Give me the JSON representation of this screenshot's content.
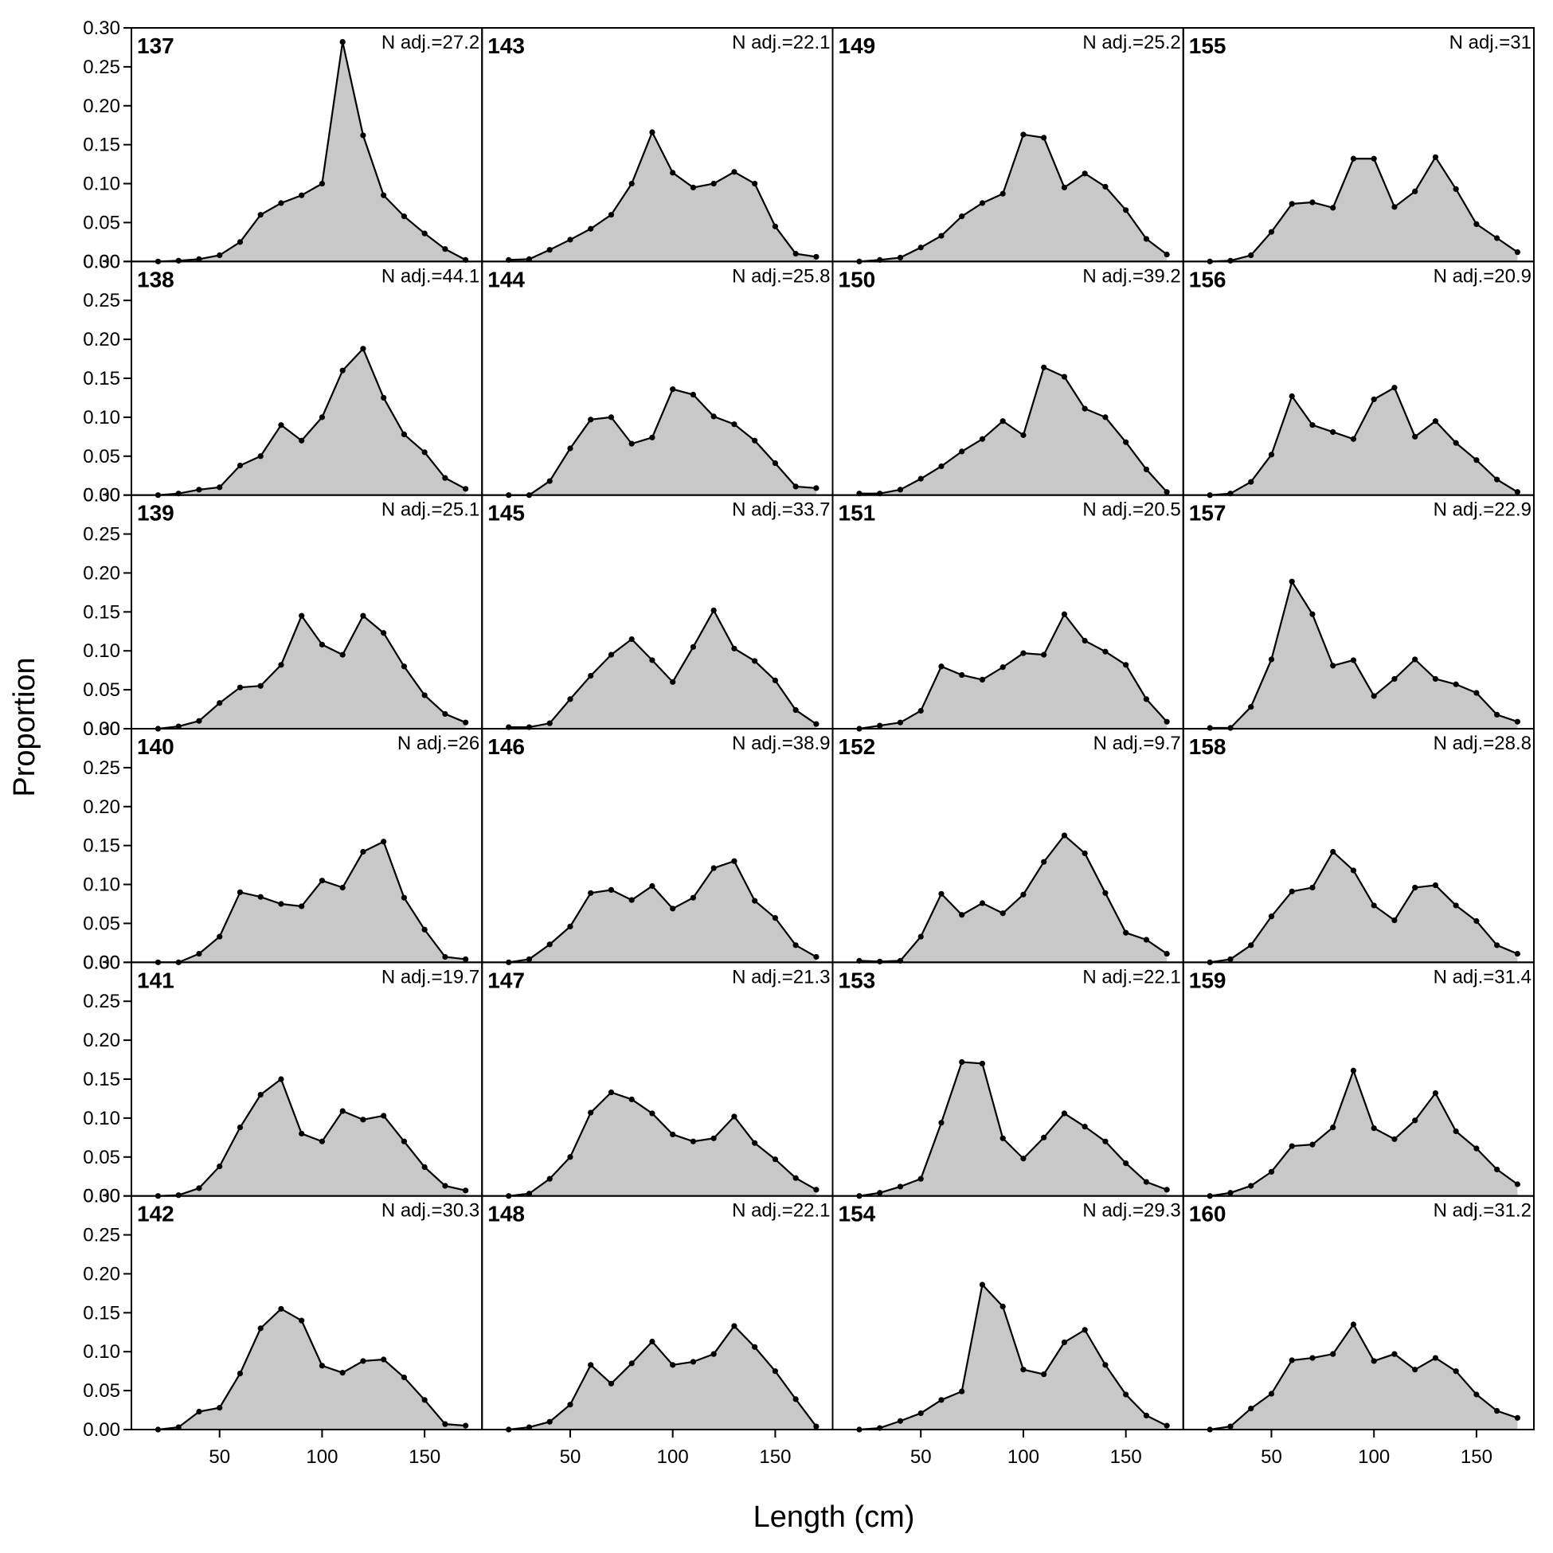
{
  "chart_data": {
    "type": "area",
    "xlabel": "Length (cm)",
    "ylabel": "Proportion",
    "xlim": [
      7,
      178
    ],
    "ylim": [
      0,
      0.3
    ],
    "x_ticks": [
      50,
      100,
      150
    ],
    "y_ticks": [
      "0.00",
      "0.05",
      "0.10",
      "0.15",
      "0.20",
      "0.25",
      "0.30"
    ],
    "grid": false,
    "layout": {
      "rows": 6,
      "cols": 4,
      "order": "column-major"
    },
    "x": [
      20,
      30,
      40,
      50,
      60,
      70,
      80,
      90,
      100,
      110,
      120,
      130,
      140,
      150,
      160,
      170
    ],
    "panels": [
      {
        "id": "137",
        "n_label": "N adj.=27.2",
        "values": [
          0.0,
          0.001,
          0.003,
          0.008,
          0.025,
          0.06,
          0.075,
          0.085,
          0.1,
          0.282,
          0.162,
          0.085,
          0.058,
          0.036,
          0.016,
          0.002
        ]
      },
      {
        "id": "138",
        "n_label": "N adj.=44.1",
        "values": [
          0.0,
          0.002,
          0.007,
          0.01,
          0.038,
          0.05,
          0.09,
          0.07,
          0.1,
          0.16,
          0.188,
          0.125,
          0.078,
          0.055,
          0.022,
          0.008
        ]
      },
      {
        "id": "139",
        "n_label": "N adj.=25.1",
        "values": [
          0.0,
          0.003,
          0.01,
          0.033,
          0.053,
          0.055,
          0.082,
          0.145,
          0.108,
          0.095,
          0.145,
          0.123,
          0.08,
          0.043,
          0.019,
          0.008
        ]
      },
      {
        "id": "140",
        "n_label": "N adj.=26",
        "values": [
          0.0,
          0.0,
          0.011,
          0.033,
          0.09,
          0.084,
          0.075,
          0.072,
          0.105,
          0.096,
          0.142,
          0.155,
          0.083,
          0.042,
          0.007,
          0.004
        ]
      },
      {
        "id": "141",
        "n_label": "N adj.=19.7",
        "values": [
          0.0,
          0.001,
          0.01,
          0.038,
          0.088,
          0.13,
          0.15,
          0.08,
          0.07,
          0.109,
          0.098,
          0.103,
          0.07,
          0.037,
          0.013,
          0.007
        ]
      },
      {
        "id": "142",
        "n_label": "N adj.=30.3",
        "values": [
          0.0,
          0.003,
          0.023,
          0.028,
          0.072,
          0.13,
          0.155,
          0.14,
          0.082,
          0.073,
          0.088,
          0.09,
          0.067,
          0.038,
          0.007,
          0.005
        ]
      },
      {
        "id": "143",
        "n_label": "N adj.=22.1",
        "values": [
          0.002,
          0.003,
          0.015,
          0.028,
          0.042,
          0.06,
          0.1,
          0.166,
          0.114,
          0.095,
          0.1,
          0.115,
          0.1,
          0.045,
          0.01,
          0.006
        ]
      },
      {
        "id": "144",
        "n_label": "N adj.=25.8",
        "values": [
          0.0,
          0.0,
          0.018,
          0.06,
          0.097,
          0.1,
          0.066,
          0.074,
          0.136,
          0.129,
          0.101,
          0.091,
          0.07,
          0.041,
          0.011,
          0.009
        ]
      },
      {
        "id": "145",
        "n_label": "N adj.=33.7",
        "values": [
          0.002,
          0.002,
          0.007,
          0.038,
          0.068,
          0.095,
          0.115,
          0.088,
          0.06,
          0.105,
          0.152,
          0.103,
          0.087,
          0.062,
          0.024,
          0.006
        ]
      },
      {
        "id": "146",
        "n_label": "N adj.=38.9",
        "values": [
          0.0,
          0.004,
          0.023,
          0.046,
          0.089,
          0.093,
          0.08,
          0.098,
          0.069,
          0.083,
          0.121,
          0.13,
          0.079,
          0.057,
          0.022,
          0.007
        ]
      },
      {
        "id": "147",
        "n_label": "N adj.=21.3",
        "values": [
          0.0,
          0.003,
          0.022,
          0.05,
          0.107,
          0.133,
          0.124,
          0.106,
          0.079,
          0.07,
          0.074,
          0.102,
          0.068,
          0.047,
          0.023,
          0.008
        ]
      },
      {
        "id": "148",
        "n_label": "N adj.=22.1",
        "values": [
          0.0,
          0.003,
          0.01,
          0.032,
          0.083,
          0.059,
          0.085,
          0.113,
          0.083,
          0.087,
          0.097,
          0.133,
          0.106,
          0.075,
          0.039,
          0.004
        ]
      },
      {
        "id": "149",
        "n_label": "N adj.=25.2",
        "values": [
          0.0,
          0.002,
          0.005,
          0.018,
          0.033,
          0.058,
          0.075,
          0.087,
          0.163,
          0.159,
          0.095,
          0.113,
          0.096,
          0.066,
          0.029,
          0.009
        ]
      },
      {
        "id": "150",
        "n_label": "N adj.=39.2",
        "values": [
          0.002,
          0.002,
          0.007,
          0.021,
          0.037,
          0.056,
          0.072,
          0.095,
          0.077,
          0.164,
          0.152,
          0.111,
          0.1,
          0.068,
          0.033,
          0.004
        ]
      },
      {
        "id": "151",
        "n_label": "N adj.=20.5",
        "values": [
          0.0,
          0.004,
          0.008,
          0.023,
          0.08,
          0.069,
          0.063,
          0.079,
          0.097,
          0.095,
          0.147,
          0.113,
          0.099,
          0.082,
          0.038,
          0.009
        ]
      },
      {
        "id": "152",
        "n_label": "N adj.=9.7",
        "values": [
          0.002,
          0.001,
          0.002,
          0.033,
          0.088,
          0.061,
          0.076,
          0.063,
          0.087,
          0.129,
          0.163,
          0.14,
          0.089,
          0.038,
          0.029,
          0.011
        ]
      },
      {
        "id": "153",
        "n_label": "N adj.=22.1",
        "values": [
          0.0,
          0.004,
          0.012,
          0.022,
          0.094,
          0.172,
          0.17,
          0.074,
          0.048,
          0.075,
          0.106,
          0.089,
          0.07,
          0.042,
          0.018,
          0.008
        ]
      },
      {
        "id": "154",
        "n_label": "N adj.=29.3",
        "values": [
          0.0,
          0.002,
          0.011,
          0.021,
          0.038,
          0.049,
          0.186,
          0.158,
          0.077,
          0.071,
          0.112,
          0.128,
          0.083,
          0.045,
          0.018,
          0.005
        ]
      },
      {
        "id": "155",
        "n_label": "N adj.=31",
        "values": [
          0.0,
          0.001,
          0.008,
          0.038,
          0.074,
          0.076,
          0.069,
          0.132,
          0.132,
          0.07,
          0.09,
          0.134,
          0.093,
          0.048,
          0.03,
          0.012
        ]
      },
      {
        "id": "156",
        "n_label": "N adj.=20.9",
        "values": [
          0.0,
          0.002,
          0.017,
          0.052,
          0.127,
          0.09,
          0.081,
          0.072,
          0.123,
          0.138,
          0.075,
          0.095,
          0.067,
          0.045,
          0.02,
          0.004
        ]
      },
      {
        "id": "157",
        "n_label": "N adj.=22.9",
        "values": [
          0.001,
          0.001,
          0.028,
          0.089,
          0.189,
          0.147,
          0.081,
          0.088,
          0.042,
          0.064,
          0.089,
          0.064,
          0.057,
          0.046,
          0.018,
          0.009
        ]
      },
      {
        "id": "158",
        "n_label": "N adj.=28.8",
        "values": [
          0.0,
          0.004,
          0.022,
          0.059,
          0.091,
          0.096,
          0.142,
          0.118,
          0.073,
          0.054,
          0.096,
          0.099,
          0.073,
          0.053,
          0.022,
          0.011
        ]
      },
      {
        "id": "159",
        "n_label": "N adj.=31.4",
        "values": [
          0.0,
          0.004,
          0.013,
          0.031,
          0.064,
          0.066,
          0.088,
          0.161,
          0.087,
          0.073,
          0.097,
          0.132,
          0.083,
          0.061,
          0.034,
          0.015
        ]
      },
      {
        "id": "160",
        "n_label": "N adj.=31.2",
        "values": [
          0.0,
          0.004,
          0.027,
          0.046,
          0.089,
          0.092,
          0.097,
          0.135,
          0.088,
          0.097,
          0.077,
          0.092,
          0.075,
          0.045,
          0.024,
          0.015
        ]
      }
    ]
  },
  "colors": {
    "fill": "#c8c8c8",
    "line": "#000000",
    "frame": "#000000"
  }
}
